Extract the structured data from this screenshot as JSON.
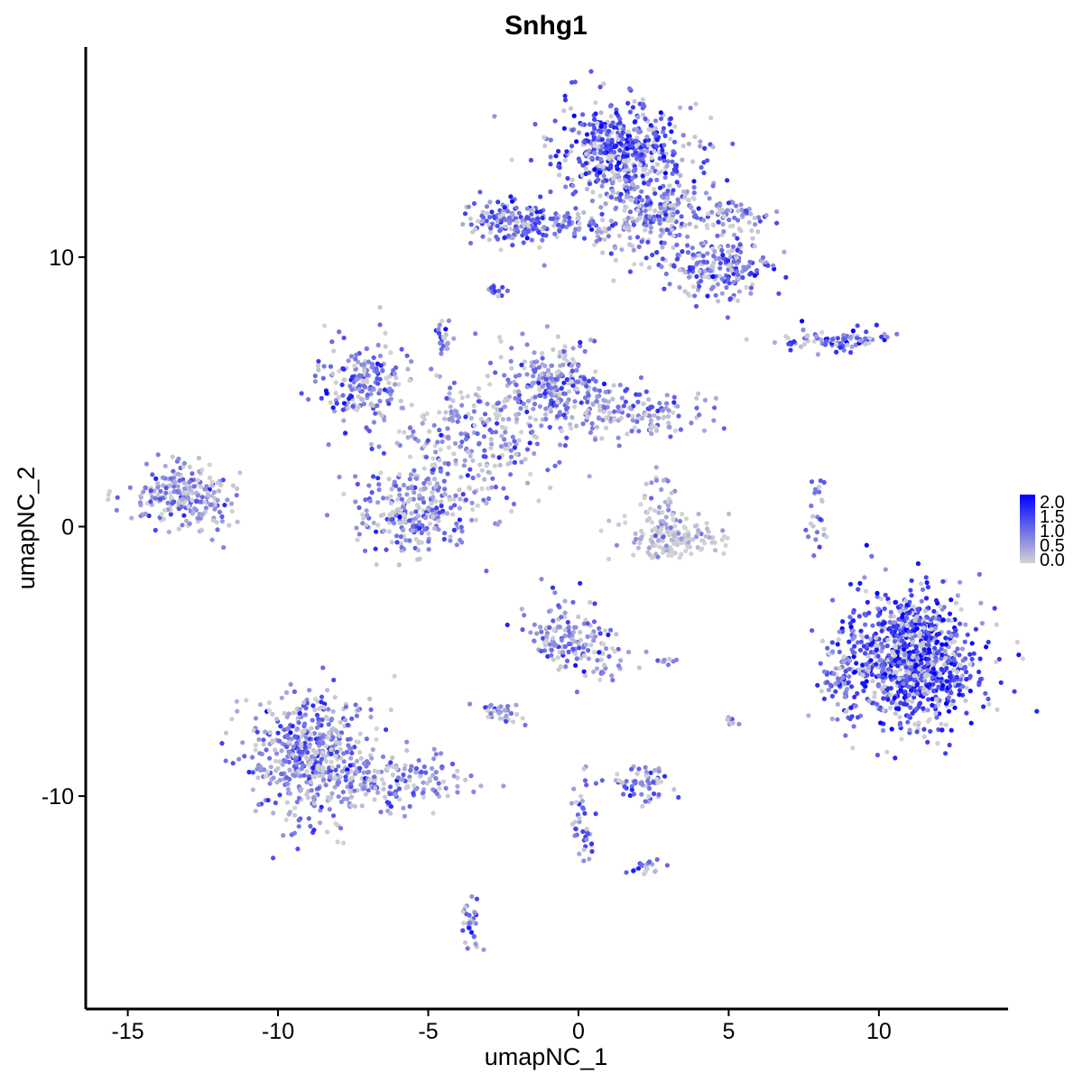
{
  "chart_data": {
    "type": "scatter",
    "title": "Snhg1",
    "xlabel": "umapNC_1",
    "ylabel": "umapNC_2",
    "xlim": [
      -16.4,
      14.3
    ],
    "ylim": [
      -17.9,
      17.8
    ],
    "x_ticks": [
      -15,
      -10,
      -5,
      0,
      5,
      10
    ],
    "y_ticks": [
      -10,
      0,
      10
    ],
    "x_tick_labels": [
      "-15",
      "-10",
      "-5",
      "0",
      "5",
      "10"
    ],
    "y_tick_labels": [
      "-10",
      "0",
      "10"
    ],
    "grid": false,
    "legend": {
      "placement": "right",
      "scale": "continuous",
      "min": 0.0,
      "max": 2.0,
      "labels": [
        "2.0",
        "1.5",
        "1.0",
        "0.5",
        "0.0"
      ],
      "color_low": "#d3d3d3",
      "color_high": "#0000ff"
    },
    "value_description": "Snhg1 expression per cell",
    "clusters": [
      {
        "id": "top-north-blob",
        "center": [
          1.4,
          14.1
        ],
        "spread": [
          1.0,
          0.8
        ],
        "n": 450,
        "expr": 1.25
      },
      {
        "id": "top-arm-left",
        "center": [
          -2.3,
          11.3
        ],
        "spread": [
          0.7,
          0.5
        ],
        "n": 130,
        "expr": 1.0
      },
      {
        "id": "top-bridge",
        "center": [
          -0.6,
          11.2
        ],
        "spread": [
          1.1,
          0.25
        ],
        "n": 80,
        "expr": 0.85
      },
      {
        "id": "top-body",
        "center": [
          2.4,
          11.8
        ],
        "spread": [
          1.1,
          1.0
        ],
        "n": 300,
        "expr": 0.85
      },
      {
        "id": "top-right-lobe",
        "center": [
          4.9,
          9.5
        ],
        "spread": [
          0.8,
          0.6
        ],
        "n": 180,
        "expr": 0.95
      },
      {
        "id": "top-right-arm",
        "center": [
          5.0,
          11.6
        ],
        "spread": [
          0.7,
          0.35
        ],
        "n": 70,
        "expr": 0.8
      },
      {
        "id": "top-small",
        "center": [
          -2.7,
          8.8
        ],
        "spread": [
          0.2,
          0.15
        ],
        "n": 12,
        "expr": 0.8
      },
      {
        "id": "right-strip",
        "center": [
          8.6,
          6.9
        ],
        "spread": [
          1.0,
          0.2
        ],
        "n": 90,
        "expr": 1.05
      },
      {
        "id": "mid-left-lobe",
        "center": [
          -7.2,
          5.3
        ],
        "spread": [
          0.8,
          0.9
        ],
        "n": 190,
        "expr": 0.85
      },
      {
        "id": "mid-top-spike",
        "center": [
          -4.5,
          7.0
        ],
        "spread": [
          0.15,
          0.4
        ],
        "n": 25,
        "expr": 0.9
      },
      {
        "id": "mid-center",
        "center": [
          -3.6,
          3.3
        ],
        "spread": [
          1.4,
          1.2
        ],
        "n": 260,
        "expr": 0.65
      },
      {
        "id": "mid-right-lobe",
        "center": [
          -0.8,
          5.3
        ],
        "spread": [
          0.8,
          0.8
        ],
        "n": 220,
        "expr": 0.85
      },
      {
        "id": "mid-right-arm",
        "center": [
          1.6,
          4.2
        ],
        "spread": [
          1.2,
          0.45
        ],
        "n": 170,
        "expr": 0.65
      },
      {
        "id": "mid-bottom-lobe",
        "center": [
          -5.4,
          0.6
        ],
        "spread": [
          1.0,
          0.9
        ],
        "n": 260,
        "expr": 0.8
      },
      {
        "id": "left-blob",
        "center": [
          -13.2,
          1.1
        ],
        "spread": [
          0.9,
          0.6
        ],
        "n": 230,
        "expr": 0.75
      },
      {
        "id": "gray-mid",
        "center": [
          3.2,
          -0.4
        ],
        "spread": [
          0.9,
          0.4
        ],
        "n": 140,
        "expr": 0.12
      },
      {
        "id": "gray-mid-top",
        "center": [
          2.8,
          0.8
        ],
        "spread": [
          0.3,
          0.6
        ],
        "n": 40,
        "expr": 0.35
      },
      {
        "id": "thin-vertical",
        "center": [
          7.9,
          0.1
        ],
        "spread": [
          0.15,
          1.0
        ],
        "n": 25,
        "expr": 0.9
      },
      {
        "id": "big-right",
        "center": [
          11.1,
          -4.9
        ],
        "spread": [
          1.1,
          1.2
        ],
        "n": 950,
        "expr": 1.35
      },
      {
        "id": "big-right-tail",
        "center": [
          8.8,
          -5.6
        ],
        "spread": [
          0.35,
          0.9
        ],
        "n": 80,
        "expr": 1.1
      },
      {
        "id": "mid-low-blob",
        "center": [
          -0.5,
          -4.0
        ],
        "spread": [
          0.6,
          0.6
        ],
        "n": 120,
        "expr": 0.8
      },
      {
        "id": "mid-low-arm",
        "center": [
          0.8,
          -4.8
        ],
        "spread": [
          0.6,
          0.5
        ],
        "n": 45,
        "expr": 0.75
      },
      {
        "id": "mid-low-small",
        "center": [
          -2.6,
          -6.9
        ],
        "spread": [
          0.4,
          0.2
        ],
        "n": 35,
        "expr": 0.75
      },
      {
        "id": "mid-low-small2",
        "center": [
          2.3,
          -9.6
        ],
        "spread": [
          0.6,
          0.35
        ],
        "n": 60,
        "expr": 0.8
      },
      {
        "id": "mid-low-bar",
        "center": [
          0.2,
          -11.2
        ],
        "spread": [
          0.2,
          1.2
        ],
        "n": 40,
        "expr": 0.85
      },
      {
        "id": "mid-low-tip",
        "center": [
          2.4,
          -12.6
        ],
        "spread": [
          0.25,
          0.15
        ],
        "n": 18,
        "expr": 1.1
      },
      {
        "id": "left-bottom-blob",
        "center": [
          -8.9,
          -8.5
        ],
        "spread": [
          1.0,
          1.2
        ],
        "n": 520,
        "expr": 0.8
      },
      {
        "id": "left-bottom-arm",
        "center": [
          -6.1,
          -9.4
        ],
        "spread": [
          1.1,
          0.5
        ],
        "n": 160,
        "expr": 0.7
      },
      {
        "id": "left-bottom-tail",
        "center": [
          -3.6,
          -14.8
        ],
        "spread": [
          0.2,
          0.6
        ],
        "n": 30,
        "expr": 0.95
      },
      {
        "id": "small-a",
        "center": [
          5.1,
          -7.2
        ],
        "spread": [
          0.12,
          0.15
        ],
        "n": 8,
        "expr": 0.6
      },
      {
        "id": "small-b",
        "center": [
          3.1,
          -5.0
        ],
        "spread": [
          0.3,
          0.08
        ],
        "n": 8,
        "expr": 1.0
      }
    ]
  }
}
